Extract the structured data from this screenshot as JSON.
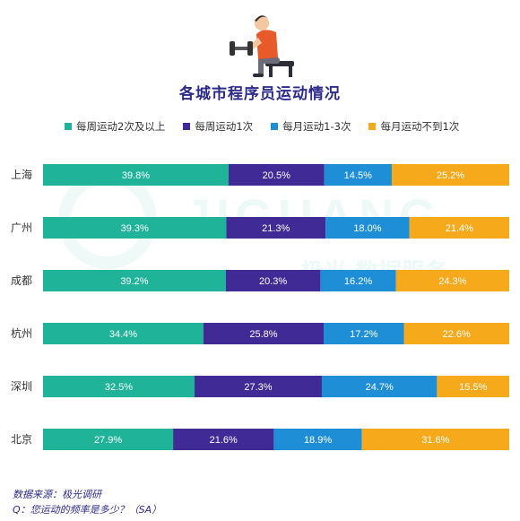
{
  "title": "各城市程序员运动情况",
  "source": "数据来源：极光调研",
  "question": "Q：您运动的频率是多少？（SA）",
  "watermark_brand": "JIGUANG",
  "watermark_sub": "极光 数据服务",
  "icon": "weightlifter-icon",
  "chart_data": {
    "type": "bar",
    "orientation": "horizontal",
    "stacked": true,
    "categories": [
      "上海",
      "广州",
      "成都",
      "杭州",
      "深圳",
      "北京"
    ],
    "series": [
      {
        "name": "每周运动2次及以上",
        "color": "#1fb39a",
        "values": [
          39.8,
          39.3,
          39.2,
          34.4,
          32.5,
          27.9
        ]
      },
      {
        "name": "每周运动1次",
        "color": "#3f2a96",
        "values": [
          20.5,
          21.3,
          20.3,
          25.8,
          27.3,
          21.6
        ]
      },
      {
        "name": "每月运动1-3次",
        "color": "#1e8fd6",
        "values": [
          14.5,
          18.0,
          16.2,
          17.2,
          24.7,
          18.9
        ]
      },
      {
        "name": "每月运动不到1次",
        "color": "#f6a91b",
        "values": [
          25.2,
          21.4,
          24.3,
          22.6,
          15.5,
          31.6
        ]
      }
    ],
    "labels": [
      [
        "39.8%",
        "20.5%",
        "14.5%",
        "25.2%"
      ],
      [
        "39.3%",
        "21.3%",
        "18.0%",
        "21.4%"
      ],
      [
        "39.2%",
        "20.3%",
        "16.2%",
        "24.3%"
      ],
      [
        "34.4%",
        "25.8%",
        "17.2%",
        "22.6%"
      ],
      [
        "32.5%",
        "27.3%",
        "24.7%",
        "15.5%"
      ],
      [
        "27.9%",
        "21.6%",
        "18.9%",
        "31.6%"
      ]
    ],
    "xlim": [
      0,
      100
    ],
    "grid": false,
    "legend": "top"
  }
}
